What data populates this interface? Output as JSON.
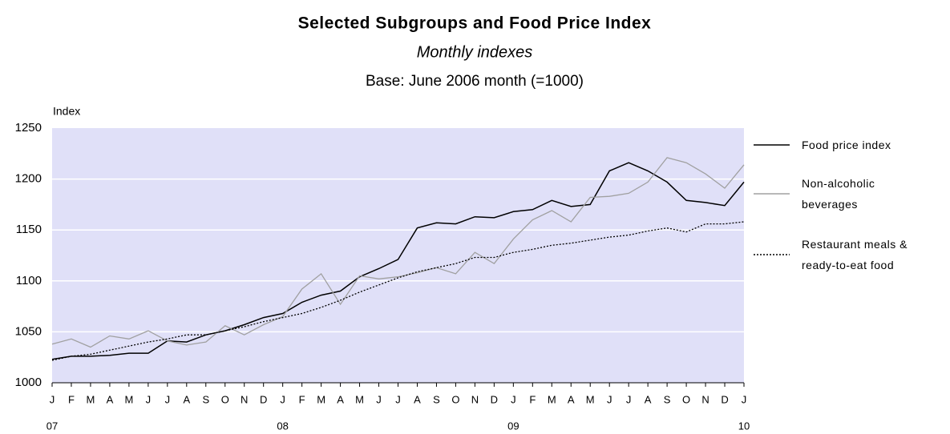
{
  "chart_data": {
    "type": "line",
    "title": "Selected Subgroups and Food Price Index",
    "subtitle": "Monthly indexes",
    "note": "Base: June 2006 month (=1000)",
    "y_label": "Index",
    "categories": [
      "J",
      "F",
      "M",
      "A",
      "M",
      "J",
      "J",
      "A",
      "S",
      "O",
      "N",
      "D",
      "J",
      "F",
      "M",
      "A",
      "M",
      "J",
      "J",
      "A",
      "S",
      "O",
      "N",
      "D",
      "J",
      "F",
      "M",
      "A",
      "M",
      "J",
      "J",
      "A",
      "S",
      "O",
      "N",
      "D",
      "J"
    ],
    "category_groups": [
      "07",
      null,
      null,
      null,
      null,
      null,
      null,
      null,
      null,
      null,
      null,
      null,
      "08",
      null,
      null,
      null,
      null,
      null,
      null,
      null,
      null,
      null,
      null,
      null,
      "09",
      null,
      null,
      null,
      null,
      null,
      null,
      null,
      null,
      null,
      null,
      null,
      "10"
    ],
    "series": [
      {
        "name": "Food price index",
        "color": "#000000",
        "style": "solid",
        "values": [
          1023,
          1026,
          1026,
          1027,
          1029,
          1029,
          1041,
          1040,
          1047,
          1051,
          1057,
          1064,
          1068,
          1079,
          1086,
          1090,
          1104,
          1112,
          1121,
          1152,
          1157,
          1156,
          1163,
          1162,
          1168,
          1170,
          1179,
          1173,
          1175,
          1208,
          1216,
          1208,
          1197,
          1179,
          1177,
          1174,
          1197
        ]
      },
      {
        "name": "Non-alcoholic beverages",
        "color": "#a0a0a0",
        "style": "solid",
        "values": [
          1038,
          1043,
          1035,
          1046,
          1043,
          1051,
          1041,
          1037,
          1040,
          1056,
          1047,
          1057,
          1065,
          1092,
          1107,
          1077,
          1105,
          1102,
          1104,
          1108,
          1113,
          1107,
          1128,
          1117,
          1141,
          1160,
          1169,
          1158,
          1182,
          1183,
          1186,
          1197,
          1221,
          1216,
          1205,
          1191,
          1214
        ]
      },
      {
        "name": "Restaurant meals & ready-to-eat food",
        "color": "#000000",
        "style": "dotted",
        "values": [
          1022,
          1026,
          1028,
          1032,
          1036,
          1040,
          1043,
          1047,
          1047,
          1051,
          1055,
          1060,
          1064,
          1068,
          1074,
          1081,
          1089,
          1096,
          1103,
          1109,
          1113,
          1117,
          1123,
          1123,
          1128,
          1131,
          1135,
          1137,
          1140,
          1143,
          1145,
          1149,
          1152,
          1148,
          1156,
          1156,
          1158
        ]
      }
    ],
    "ylim": [
      1000,
      1250
    ],
    "yticks": [
      1000,
      1050,
      1100,
      1150,
      1200,
      1250
    ],
    "grid": true,
    "plot_background": "#e0e0f8",
    "legend": "right"
  }
}
